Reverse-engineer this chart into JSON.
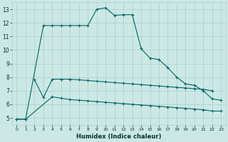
{
  "xlabel": "Humidex (Indice chaleur)",
  "bg_color": "#cce8e4",
  "grid_color": "#aacccc",
  "line_color": "#006666",
  "xlim": [
    -0.5,
    23.5
  ],
  "ylim": [
    4.5,
    13.5
  ],
  "xticks": [
    0,
    1,
    2,
    3,
    4,
    5,
    6,
    7,
    8,
    9,
    10,
    11,
    12,
    13,
    14,
    15,
    16,
    17,
    18,
    19,
    20,
    21,
    22,
    23
  ],
  "yticks": [
    5,
    6,
    7,
    8,
    9,
    10,
    11,
    12,
    13
  ],
  "series1_x": [
    0,
    1,
    3,
    4,
    5,
    6,
    7,
    8,
    9,
    10,
    11,
    12,
    13,
    14,
    15,
    16,
    17,
    18,
    19,
    20,
    21,
    22,
    23
  ],
  "series1_y": [
    4.9,
    4.9,
    11.8,
    11.8,
    11.8,
    11.8,
    11.8,
    11.8,
    13.0,
    13.1,
    12.55,
    12.6,
    12.6,
    10.1,
    9.4,
    9.3,
    8.7,
    8.0,
    7.5,
    7.4,
    7.0,
    6.4,
    6.3
  ],
  "series2_x": [
    2,
    3,
    4,
    5,
    6,
    7,
    8,
    9,
    10,
    11,
    12,
    13,
    14,
    15,
    16,
    17,
    18,
    19,
    20,
    21,
    22
  ],
  "series2_y": [
    7.8,
    6.5,
    7.85,
    7.85,
    7.85,
    7.8,
    7.75,
    7.7,
    7.65,
    7.6,
    7.55,
    7.5,
    7.45,
    7.4,
    7.35,
    7.3,
    7.25,
    7.2,
    7.15,
    7.1,
    7.0
  ],
  "series3_x": [
    0,
    1,
    4,
    5,
    6,
    7,
    8,
    9,
    10,
    11,
    12,
    13,
    14,
    15,
    16,
    17,
    18,
    19,
    20,
    21,
    22,
    23
  ],
  "series3_y": [
    4.9,
    4.9,
    6.55,
    6.45,
    6.35,
    6.3,
    6.25,
    6.2,
    6.15,
    6.1,
    6.05,
    6.0,
    5.95,
    5.9,
    5.85,
    5.8,
    5.75,
    5.7,
    5.65,
    5.6,
    5.5,
    5.5
  ]
}
